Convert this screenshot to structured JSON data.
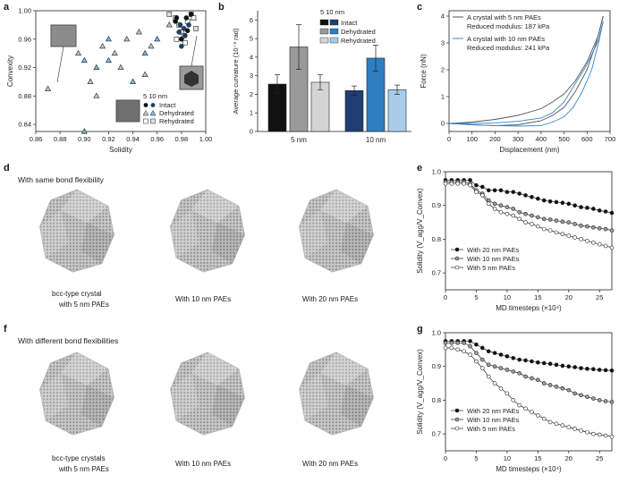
{
  "figure": {
    "panel_labels": {
      "a": "a",
      "b": "b",
      "c": "c",
      "d": "d",
      "e": "e",
      "f": "f",
      "g": "g"
    },
    "d_caption": "With same bond flexibility",
    "f_caption": "With different bond flexibilities",
    "d_labels": [
      "bcc-type crystal",
      "with 5 nm PAEs",
      "With 10 nm PAEs",
      "With 20 nm PAEs"
    ],
    "f_labels": [
      "bcc-type crystals",
      "with 5 nm PAEs",
      "With 10 nm PAEs",
      "With 20 nm PAEs"
    ]
  },
  "chart_data": [
    {
      "id": "a",
      "type": "scatter",
      "xlabel": "Solidity",
      "ylabel": "Convexity",
      "xlim": [
        0.86,
        1.0
      ],
      "ylim": [
        0.83,
        1.0
      ],
      "xticks": [
        "0.86",
        "0.88",
        "0.90",
        "0.92",
        "0.94",
        "0.96",
        "0.98",
        "1.00"
      ],
      "yticks": [
        "0.84",
        "0.88",
        "0.92",
        "0.96",
        "1.00"
      ],
      "legend": {
        "header": "5  10 nm",
        "entries": [
          "Intact",
          "Dehydrated",
          "Rehydrated"
        ]
      },
      "series": [
        {
          "name": "Intact",
          "x": [
            0.975,
            0.978,
            0.98,
            0.982,
            0.984,
            0.986,
            0.988,
            0.98,
            0.976,
            0.983,
            0.985,
            0.979
          ],
          "y": [
            0.985,
            0.97,
            0.96,
            0.975,
            0.99,
            0.98,
            0.995,
            0.95,
            0.99,
            0.965,
            0.972,
            0.98
          ]
        },
        {
          "name": "Dehydrated",
          "x": [
            0.87,
            0.885,
            0.895,
            0.9,
            0.905,
            0.91,
            0.915,
            0.92,
            0.925,
            0.93,
            0.935,
            0.94,
            0.945,
            0.95,
            0.955,
            0.9,
            0.91,
            0.92,
            0.93,
            0.94,
            0.95,
            0.96,
            0.97,
            0.98,
            0.99
          ],
          "y": [
            0.89,
            0.96,
            0.94,
            0.83,
            0.9,
            0.92,
            0.95,
            0.93,
            0.94,
            0.87,
            0.96,
            0.9,
            0.97,
            0.94,
            0.95,
            0.93,
            0.88,
            0.96,
            0.92,
            0.86,
            0.91,
            0.96,
            0.98,
            0.97,
            0.99
          ]
        },
        {
          "name": "Rehydrated",
          "x": [
            0.975,
            0.978,
            0.98,
            0.982,
            0.985,
            0.988,
            0.99,
            0.992,
            0.976,
            0.97,
            0.983
          ],
          "y": [
            0.99,
            0.98,
            0.97,
            0.965,
            0.985,
            0.995,
            0.99,
            0.975,
            0.96,
            0.995,
            0.955
          ]
        }
      ]
    },
    {
      "id": "b",
      "type": "bar",
      "ylabel": "Average curvature (10⁻³ rad)",
      "categories": [
        "5 nm",
        "10 nm"
      ],
      "ylim": [
        0,
        6.5
      ],
      "yticks": [
        "0",
        "1",
        "2",
        "3",
        "4",
        "5",
        "6"
      ],
      "legend": {
        "header": "5  10 nm",
        "entries": [
          "Intact",
          "Dehydrated",
          "Rehydrated"
        ]
      },
      "series": [
        {
          "name": "Intact",
          "values": [
            2.55,
            2.2
          ],
          "errors": [
            0.5,
            0.25
          ]
        },
        {
          "name": "Dehydrated",
          "values": [
            4.55,
            3.95
          ],
          "errors": [
            1.2,
            0.7
          ]
        },
        {
          "name": "Rehydrated",
          "values": [
            2.65,
            2.25
          ],
          "errors": [
            0.4,
            0.25
          ]
        }
      ],
      "colors": {
        "Intact": [
          "#111111",
          "#1f3e73"
        ],
        "Dehydrated": [
          "#9a9a9a",
          "#2f7ec2"
        ],
        "Rehydrated": [
          "#d4d4d4",
          "#a9cde8"
        ]
      }
    },
    {
      "id": "c",
      "type": "line",
      "xlabel": "Displacement (nm)",
      "ylabel": "Force (nN)",
      "xlim": [
        0,
        700
      ],
      "ylim": [
        -0.3,
        4.2
      ],
      "xticks": [
        "0",
        "100",
        "200",
        "300",
        "400",
        "500",
        "600",
        "700"
      ],
      "yticks": [
        "0",
        "1",
        "2",
        "3",
        "4"
      ],
      "legend": [
        {
          "line1": "A crystal with 5 nm PAEs",
          "line2": "Reduced modulus: 187 kPa",
          "color": "#555555"
        },
        {
          "line1": "A crystal with 10 nm PAEs",
          "line2": "Reduced modulus: 241 kPa",
          "color": "#3a86c8"
        }
      ],
      "series": [
        {
          "name": "5 nm load",
          "x": [
            0,
            100,
            200,
            300,
            400,
            450,
            500,
            550,
            600,
            650,
            670
          ],
          "y": [
            0,
            0.05,
            0.15,
            0.3,
            0.55,
            0.8,
            1.1,
            1.6,
            2.3,
            3.3,
            4.0
          ]
        },
        {
          "name": "5 nm unload",
          "x": [
            670,
            640,
            600,
            550,
            500,
            450,
            400,
            300,
            200,
            100,
            0
          ],
          "y": [
            4.0,
            3.0,
            2.0,
            1.2,
            0.6,
            0.3,
            0.1,
            -0.05,
            -0.08,
            -0.05,
            0
          ]
        },
        {
          "name": "10 nm load",
          "x": [
            0,
            100,
            200,
            300,
            400,
            450,
            500,
            550,
            600,
            650,
            670
          ],
          "y": [
            0,
            0.0,
            0.02,
            0.08,
            0.2,
            0.4,
            0.8,
            1.5,
            2.2,
            3.1,
            3.8
          ]
        },
        {
          "name": "10 nm unload",
          "x": [
            670,
            650,
            620,
            580,
            540,
            500,
            450,
            400,
            300,
            200,
            100,
            0
          ],
          "y": [
            3.8,
            3.0,
            2.0,
            1.2,
            0.6,
            0.25,
            0.05,
            -0.08,
            -0.1,
            -0.08,
            -0.05,
            0
          ]
        }
      ]
    },
    {
      "id": "e",
      "type": "line",
      "xlabel": "MD timesteps (×10⁴)",
      "ylabel": "Solidity (V_agg/V_Convex)",
      "xlim": [
        0,
        27
      ],
      "ylim": [
        0.65,
        1.0
      ],
      "xticks": [
        "0",
        "5",
        "10",
        "15",
        "20",
        "25"
      ],
      "yticks": [
        "0.7",
        "0.8",
        "0.9",
        "1.0"
      ],
      "legend": [
        "With 20 nm PAEs",
        "With 10 nm PAEs",
        "With 5 nm PAEs"
      ],
      "x": [
        0,
        1,
        2,
        3,
        4,
        5,
        6,
        7,
        8,
        9,
        10,
        11,
        12,
        13,
        14,
        15,
        16,
        17,
        18,
        19,
        20,
        21,
        22,
        23,
        24,
        25,
        26,
        27
      ],
      "series": [
        {
          "name": "With 20 nm PAEs",
          "values": [
            0.975,
            0.975,
            0.975,
            0.975,
            0.975,
            0.96,
            0.955,
            0.945,
            0.945,
            0.945,
            0.94,
            0.94,
            0.935,
            0.93,
            0.925,
            0.92,
            0.915,
            0.912,
            0.91,
            0.908,
            0.905,
            0.9,
            0.895,
            0.893,
            0.89,
            0.885,
            0.882,
            0.878
          ]
        },
        {
          "name": "With 10 nm PAEs",
          "values": [
            0.97,
            0.97,
            0.97,
            0.97,
            0.965,
            0.945,
            0.935,
            0.915,
            0.905,
            0.9,
            0.895,
            0.89,
            0.88,
            0.875,
            0.87,
            0.865,
            0.86,
            0.858,
            0.855,
            0.852,
            0.85,
            0.845,
            0.84,
            0.838,
            0.835,
            0.832,
            0.83,
            0.826
          ]
        },
        {
          "name": "With 5 nm PAEs",
          "values": [
            0.965,
            0.965,
            0.965,
            0.965,
            0.96,
            0.94,
            0.93,
            0.905,
            0.89,
            0.88,
            0.875,
            0.87,
            0.86,
            0.85,
            0.845,
            0.838,
            0.83,
            0.826,
            0.82,
            0.815,
            0.81,
            0.805,
            0.8,
            0.795,
            0.79,
            0.785,
            0.78,
            0.775
          ]
        }
      ]
    },
    {
      "id": "g",
      "type": "line",
      "xlabel": "MD timesteps (×10⁴)",
      "ylabel": "Solidity (V_agg/V_Convex)",
      "xlim": [
        0,
        27
      ],
      "ylim": [
        0.65,
        1.0
      ],
      "xticks": [
        "0",
        "5",
        "10",
        "15",
        "20",
        "25"
      ],
      "yticks": [
        "0.7",
        "0.8",
        "0.9",
        "1.0"
      ],
      "legend": [
        "With 20 nm PAEs",
        "With 10 nm PAEs",
        "With 5 nm PAEs"
      ],
      "x": [
        0,
        1,
        2,
        3,
        4,
        5,
        6,
        7,
        8,
        9,
        10,
        11,
        12,
        13,
        14,
        15,
        16,
        17,
        18,
        19,
        20,
        21,
        22,
        23,
        24,
        25,
        26,
        27
      ],
      "series": [
        {
          "name": "With 20 nm PAEs",
          "values": [
            0.975,
            0.975,
            0.975,
            0.975,
            0.975,
            0.965,
            0.955,
            0.945,
            0.94,
            0.935,
            0.93,
            0.925,
            0.92,
            0.918,
            0.915,
            0.912,
            0.91,
            0.908,
            0.905,
            0.902,
            0.9,
            0.898,
            0.895,
            0.893,
            0.892,
            0.89,
            0.889,
            0.888
          ]
        },
        {
          "name": "With 10 nm PAEs",
          "values": [
            0.97,
            0.97,
            0.97,
            0.97,
            0.96,
            0.94,
            0.92,
            0.905,
            0.9,
            0.895,
            0.89,
            0.885,
            0.88,
            0.87,
            0.865,
            0.86,
            0.85,
            0.845,
            0.84,
            0.835,
            0.83,
            0.82,
            0.815,
            0.81,
            0.805,
            0.8,
            0.797,
            0.795
          ]
        },
        {
          "name": "With 5 nm PAEs",
          "values": [
            0.955,
            0.955,
            0.95,
            0.945,
            0.935,
            0.915,
            0.895,
            0.87,
            0.85,
            0.835,
            0.82,
            0.8,
            0.785,
            0.775,
            0.765,
            0.755,
            0.745,
            0.735,
            0.73,
            0.725,
            0.72,
            0.715,
            0.71,
            0.705,
            0.7,
            0.698,
            0.695,
            0.692
          ]
        }
      ]
    }
  ]
}
